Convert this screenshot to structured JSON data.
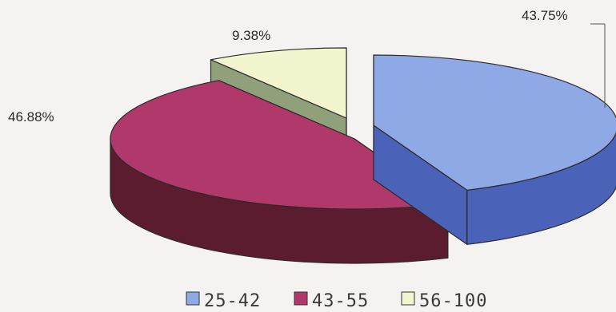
{
  "chart_data": {
    "type": "pie",
    "style": "3d-exploded",
    "title": "",
    "slices": [
      {
        "label": "25-42",
        "value": 43.75,
        "display": "43.75%",
        "color": "#8fa8e6",
        "side_color": "#4a62b8"
      },
      {
        "label": "43-55",
        "value": 46.88,
        "display": "46.88%",
        "color": "#b0386a",
        "side_color": "#5c1c30"
      },
      {
        "label": "56-100",
        "value": 9.38,
        "display": "9.38%",
        "color": "#f3f5cf",
        "side_color": "#8fa07a"
      }
    ],
    "legend": {
      "placement": "bottom",
      "items": [
        {
          "label": "25-42",
          "color": "#8fa8e6"
        },
        {
          "label": "43-55",
          "color": "#b0386a"
        },
        {
          "label": "56-100",
          "color": "#f3f5cf"
        }
      ]
    }
  }
}
